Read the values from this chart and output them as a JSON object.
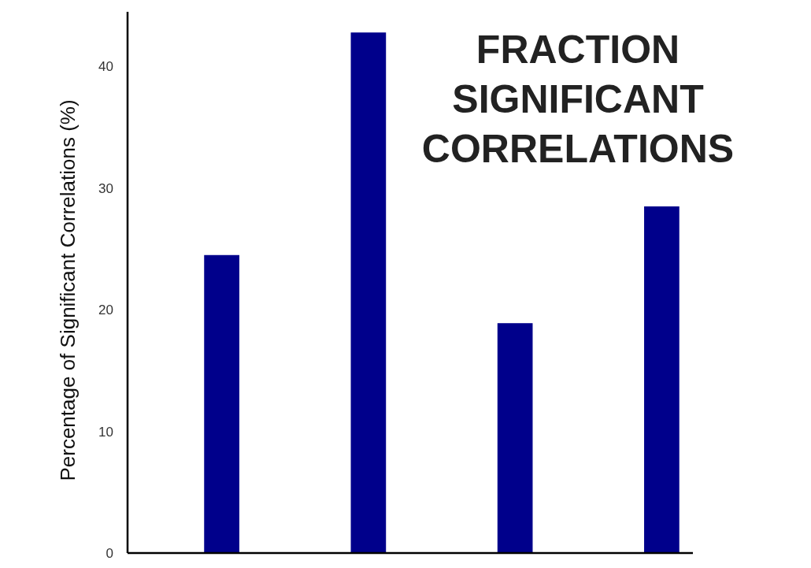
{
  "chart_data": {
    "type": "bar",
    "title": "FRACTION SIGNIFICANT CORRELATIONS",
    "ylabel": "Percentage of Significant Correlations (%)",
    "categories": [
      null,
      null,
      null,
      null
    ],
    "values": [
      24.5,
      42.8,
      18.9,
      28.5
    ],
    "color": "#00008b",
    "ylim": [
      0,
      44.5
    ],
    "yticks": [
      0,
      10,
      20,
      30,
      40
    ],
    "grid": false
  }
}
